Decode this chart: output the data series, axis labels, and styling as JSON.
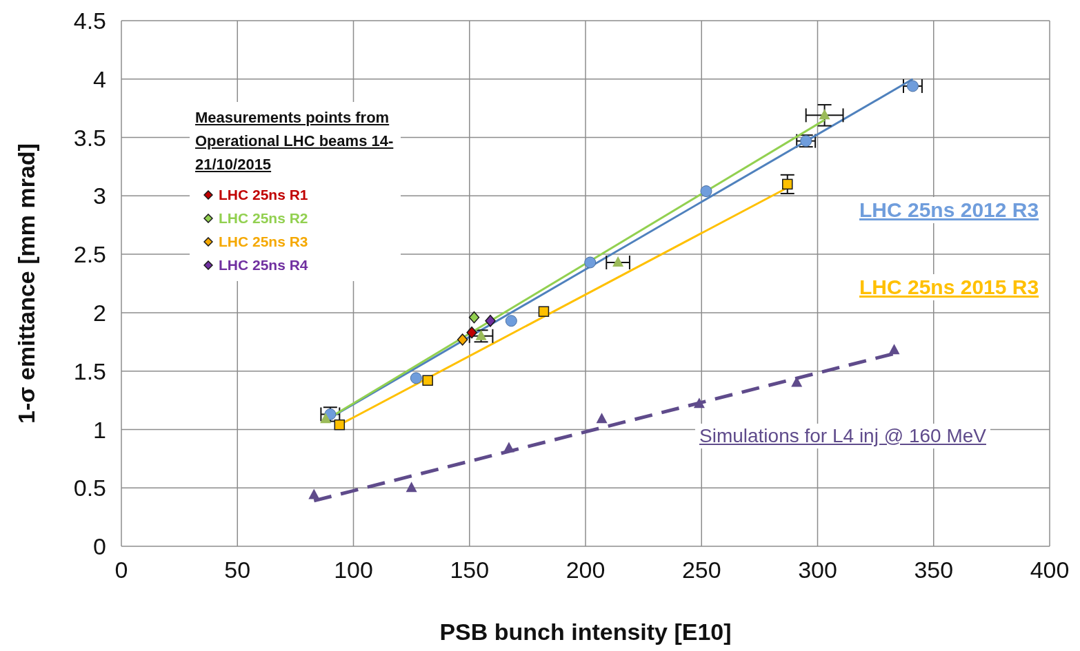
{
  "chart_data": {
    "type": "scatter",
    "xlabel": "PSB bunch intensity [E10]",
    "ylabel": "1-σ emittance [mm mrad]",
    "xlim": [
      0,
      400
    ],
    "xticks": [
      0,
      50,
      100,
      150,
      200,
      250,
      300,
      350,
      400
    ],
    "ylim": [
      0,
      4.5
    ],
    "yticks": [
      0,
      0.5,
      1,
      1.5,
      2,
      2.5,
      3,
      3.5,
      4,
      4.5
    ],
    "grid": true,
    "legend": "top left",
    "legend_title": "Measurements points from Operational LHC beams 14-21/10/2015",
    "series": [
      {
        "name": "LHC 25ns 2012 R3",
        "color": "#6f9ddc",
        "marker": "circle",
        "x": [
          90,
          127,
          168,
          202,
          252,
          295,
          341
        ],
        "values": [
          1.13,
          1.44,
          1.93,
          2.43,
          3.04,
          3.47,
          3.94
        ],
        "errors": [
          0.06,
          null,
          null,
          null,
          null,
          0.05,
          null
        ],
        "xerrors": [
          4,
          null,
          null,
          null,
          null,
          4,
          4
        ]
      },
      {
        "type": "line",
        "color": "#4f81bd",
        "marker": "none",
        "x": [
          90,
          341
        ],
        "values": [
          1.1,
          4.0
        ]
      },
      {
        "name": "LHC 25ns 2015 R3",
        "color": "#ffc000",
        "marker": "square",
        "x": [
          94,
          132,
          182,
          287
        ],
        "values": [
          1.04,
          1.42,
          2.01,
          3.1
        ],
        "errors": [
          null,
          null,
          null,
          0.08
        ]
      },
      {
        "type": "line",
        "color": "#ffc000",
        "marker": "none",
        "x": [
          94,
          287
        ],
        "values": [
          1.04,
          3.07
        ]
      },
      {
        "color": "#9bbb59",
        "marker": "triangle",
        "x": [
          88,
          155,
          214,
          303
        ],
        "values": [
          1.09,
          1.8,
          2.43,
          3.69
        ],
        "errors": [
          null,
          0.05,
          null,
          0.09
        ],
        "xerrors": [
          null,
          5,
          5,
          8
        ]
      },
      {
        "type": "line",
        "color": "#92d050",
        "marker": "none",
        "x": [
          88,
          303
        ],
        "values": [
          1.08,
          3.65
        ]
      },
      {
        "name": "Simulations for L4 inj @ 160 MeV",
        "color": "#5f4b8b",
        "marker": "triangle",
        "x": [
          83,
          125,
          167,
          207,
          249,
          291,
          333
        ],
        "values": [
          0.44,
          0.5,
          0.84,
          1.09,
          1.22,
          1.4,
          1.68
        ]
      },
      {
        "type": "line",
        "color": "#5f4b8b",
        "marker": "none",
        "line_style": "dashed",
        "x": [
          83,
          333
        ],
        "values": [
          0.39,
          1.65
        ]
      },
      {
        "name": "LHC 25ns R1",
        "color": "#c00000",
        "marker": "diamond",
        "x": [
          151
        ],
        "values": [
          1.83
        ]
      },
      {
        "name": "LHC 25ns R2",
        "color": "#92d050",
        "marker": "diamond",
        "x": [
          152
        ],
        "values": [
          1.96
        ]
      },
      {
        "name": "LHC 25ns R3",
        "color": "#f5a800",
        "marker": "diamond",
        "x": [
          147
        ],
        "values": [
          1.77
        ]
      },
      {
        "name": "LHC 25ns R4",
        "color": "#7030a0",
        "marker": "diamond",
        "x": [
          159
        ],
        "values": [
          1.93
        ]
      }
    ]
  }
}
